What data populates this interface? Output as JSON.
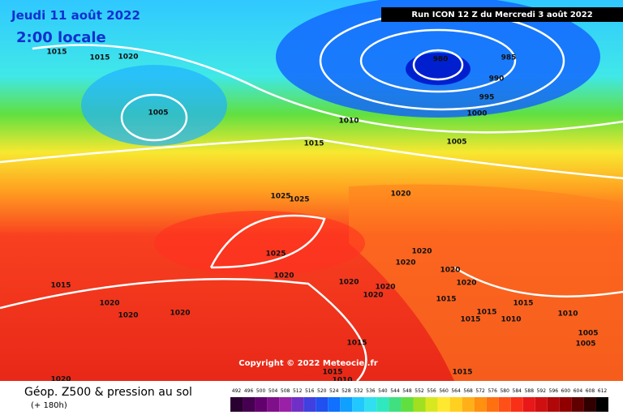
{
  "header": {
    "date": "Jeudi 11 août 2022",
    "time": "2:00 locale",
    "run": "Run ICON 12 Z du Mercredi 3 août 2022"
  },
  "copyright": "Copyright © 2022 Meteociel.fr",
  "footer": {
    "title": "Géop. Z500 & pression au sol",
    "lead": "(+ 180h)"
  },
  "isobars": [
    "980",
    "985",
    "990",
    "995",
    "1000",
    "1005",
    "1005",
    "1010",
    "1015",
    "1015",
    "1015",
    "1020",
    "1025",
    "1025",
    "1020",
    "1025",
    "1020",
    "1015",
    "1020",
    "1020",
    "1020",
    "1020",
    "1020",
    "1020",
    "1020",
    "1020",
    "1020",
    "1020",
    "1015",
    "1015",
    "1015",
    "1010",
    "1015",
    "1010",
    "1005",
    "1005",
    "1015",
    "1015",
    "1010",
    "1015",
    "1020"
  ],
  "colorbar": {
    "ticks": [
      492,
      496,
      500,
      504,
      508,
      512,
      516,
      520,
      524,
      528,
      532,
      536,
      540,
      544,
      548,
      552,
      556,
      560,
      564,
      568,
      572,
      576,
      580,
      584,
      588,
      592,
      596,
      600,
      604,
      608,
      612
    ],
    "colors": [
      "#2a0030",
      "#45004f",
      "#62006e",
      "#80108a",
      "#9a20a8",
      "#7030c8",
      "#4040e0",
      "#2050f0",
      "#1070ff",
      "#10a0ff",
      "#20c8ff",
      "#30e0f0",
      "#30e8c0",
      "#40e080",
      "#60e040",
      "#a0e020",
      "#d8e820",
      "#ffe830",
      "#ffd020",
      "#ffb018",
      "#ff9010",
      "#ff7010",
      "#ff5018",
      "#f83018",
      "#e81818",
      "#d01010",
      "#b00808",
      "#900000",
      "#600000",
      "#300000",
      "#000000"
    ]
  }
}
